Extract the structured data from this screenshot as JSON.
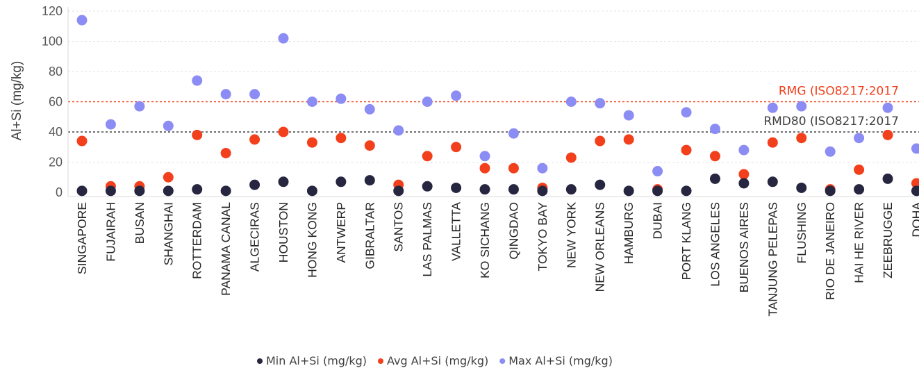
{
  "chart_data": {
    "type": "scatter",
    "ylabel": "Al+Si (mg/kg)",
    "ylim": [
      0,
      125
    ],
    "yticks": [
      0,
      20,
      40,
      60,
      80,
      100,
      120
    ],
    "grid": true,
    "legend_position": "bottom",
    "categories": [
      "SINGAPORE",
      "FUJAIRAH",
      "BUSAN",
      "SHANGHAI",
      "ROTTERDAM",
      "PANAMA CANAL",
      "ALGECIRAS",
      "HOUSTON",
      "HONG KONG",
      "ANTWERP",
      "GIBRALTAR",
      "SANTOS",
      "LAS PALMAS",
      "VALLETTA",
      "KO SICHANG",
      "QINGDAO",
      "TOKYO BAY",
      "NEW YORK",
      "NEW ORLEANS",
      "HAMBURG",
      "DUBAI",
      "PORT KLANG",
      "LOS ANGELES",
      "BUENOS AIRES",
      "TANJUNG PELEPAS",
      "FLUSHING",
      "RIO DE JANEIRO",
      "HAI HE RIVER",
      "ZEEBRUGGE",
      "DOHA"
    ],
    "series": [
      {
        "name": "Min Al+Si (mg/kg)",
        "color": "#262640",
        "values": [
          1,
          1,
          1,
          1,
          2,
          1,
          5,
          7,
          1,
          7,
          8,
          1,
          4,
          3,
          2,
          2,
          1,
          2,
          5,
          1,
          1,
          1,
          9,
          6,
          7,
          3,
          1,
          2,
          9,
          1
        ]
      },
      {
        "name": "Avg Al+Si (mg/kg)",
        "color": "#f2401c",
        "values": [
          34,
          4,
          4,
          10,
          38,
          26,
          35,
          40,
          33,
          36,
          31,
          5,
          24,
          30,
          16,
          16,
          3,
          23,
          34,
          35,
          2,
          28,
          24,
          12,
          33,
          36,
          2,
          15,
          38,
          6
        ]
      },
      {
        "name": "Max Al+Si (mg/kg)",
        "color": "#8c8cf5",
        "values": [
          114,
          45,
          57,
          44,
          74,
          65,
          65,
          102,
          60,
          62,
          55,
          41,
          60,
          64,
          24,
          39,
          16,
          60,
          59,
          51,
          14,
          53,
          42,
          28,
          56,
          57,
          27,
          36,
          56,
          29
        ]
      }
    ],
    "reference_lines": [
      {
        "label": "RMG (ISO8217:2017",
        "value": 60,
        "color": "#f2401c"
      },
      {
        "label": "RMD80 (ISO8217:2017",
        "value": 40,
        "color": "#404040"
      }
    ]
  }
}
